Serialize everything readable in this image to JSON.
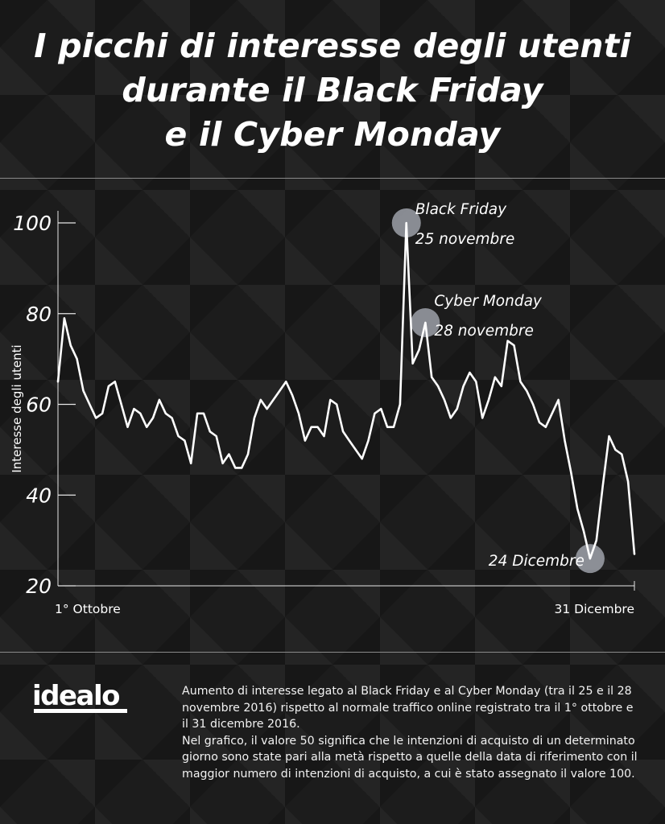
{
  "title_lines": [
    "I picchi di interesse degli utenti",
    "durante il Black Friday",
    "e il Cyber Monday"
  ],
  "chart_data": {
    "type": "line",
    "ylabel": "Interesse degli utenti",
    "ylim": [
      20,
      100
    ],
    "yticks": [
      20,
      40,
      60,
      80,
      100
    ],
    "x_start_label": "1° Ottobre",
    "x_end_label": "31 Dicembre",
    "grid": false,
    "series": [
      {
        "values": [
          65,
          79,
          73,
          70,
          63,
          60,
          57,
          58,
          64,
          65,
          60,
          55,
          59,
          58,
          55,
          57,
          61,
          58,
          57,
          53,
          52,
          47,
          58,
          58,
          54,
          53,
          47,
          49,
          46,
          46,
          49,
          57,
          61,
          59,
          61,
          63,
          65,
          62,
          58,
          52,
          55,
          55,
          53,
          61,
          60,
          54,
          52,
          50,
          48,
          52,
          58,
          59,
          55,
          55,
          60,
          100,
          69,
          72,
          78,
          66,
          64,
          61,
          57,
          59,
          64,
          67,
          65,
          57,
          61,
          66,
          64,
          74,
          73,
          65,
          63,
          60,
          56,
          55,
          58,
          61,
          52,
          45,
          37,
          32,
          26,
          30,
          42,
          53,
          50,
          49,
          43,
          27
        ]
      }
    ],
    "annotations": [
      {
        "line1": "Black Friday",
        "line2": "25 novembre",
        "index": 55,
        "value": 100
      },
      {
        "line1": "Cyber Monday",
        "line2": "28 novembre",
        "index": 58,
        "value": 78
      },
      {
        "line1": "24 Dicembre",
        "line2": "",
        "index": 84,
        "value": 26
      }
    ]
  },
  "footer": {
    "logo": "idealo",
    "paragraph1": "Aumento di interesse legato al Black Friday e al Cyber Monday (tra il 25 e il 28 novembre 2016) rispetto al normale traffico online registrato tra il 1° ottobre e il 31 dicembre 2016.",
    "paragraph2": "Nel grafico, il valore 50 significa che le intenzioni di acquisto di un determinato giorno sono state pari alla metà rispetto a quelle della data di riferimento con il maggior numero di intenzioni di acquisto, a cui è stato assegnato il valore 100."
  },
  "colors": {
    "background": "#1c1c1c",
    "line": "#ffffff",
    "highlight_circle": "#b4b9c2"
  }
}
